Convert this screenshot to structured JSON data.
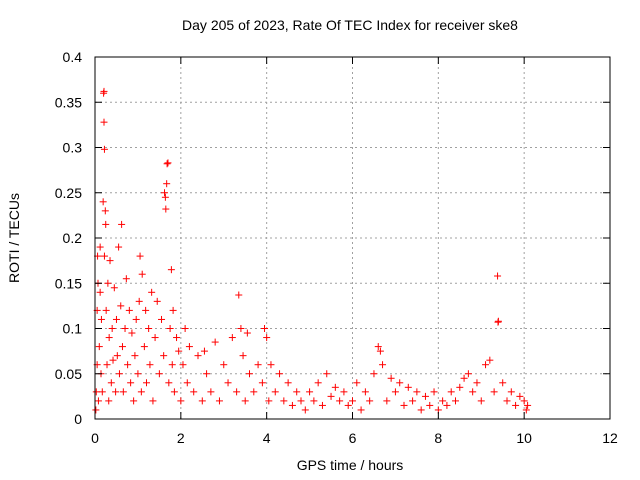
{
  "chart_data": {
    "type": "scatter",
    "title": "Day 205 of 2023, Rate Of TEC Index for receiver ske8",
    "xlabel": "GPS time / hours",
    "ylabel": "ROTI / TECUs",
    "xlim": [
      0,
      12
    ],
    "ylim": [
      0,
      0.4
    ],
    "xticks": [
      0,
      2,
      4,
      6,
      8,
      10,
      12
    ],
    "xtick_labels": [
      "0",
      "2",
      "4",
      "6",
      "8",
      "10",
      "12"
    ],
    "yticks": [
      0,
      0.05,
      0.1,
      0.15,
      0.2,
      0.25,
      0.3,
      0.35,
      0.4
    ],
    "ytick_labels": [
      "0",
      "0.05",
      "0.1",
      "0.15",
      "0.2",
      "0.25",
      "0.3",
      "0.35",
      "0.4"
    ],
    "grid": true,
    "marker": "+",
    "color": "#ff0000",
    "series": [
      {
        "name": "ROTI",
        "points": [
          [
            0.02,
            0.01
          ],
          [
            0.03,
            0.03
          ],
          [
            0.05,
            0.06
          ],
          [
            0.05,
            0.12
          ],
          [
            0.06,
            0.18
          ],
          [
            0.07,
            0.15
          ],
          [
            0.08,
            0.02
          ],
          [
            0.1,
            0.08
          ],
          [
            0.12,
            0.14
          ],
          [
            0.12,
            0.19
          ],
          [
            0.14,
            0.05
          ],
          [
            0.15,
            0.11
          ],
          [
            0.17,
            0.03
          ],
          [
            0.19,
            0.24
          ],
          [
            0.2,
            0.36
          ],
          [
            0.21,
            0.362
          ],
          [
            0.21,
            0.328
          ],
          [
            0.22,
            0.298
          ],
          [
            0.22,
            0.18
          ],
          [
            0.24,
            0.23
          ],
          [
            0.25,
            0.215
          ],
          [
            0.26,
            0.12
          ],
          [
            0.28,
            0.06
          ],
          [
            0.3,
            0.15
          ],
          [
            0.32,
            0.02
          ],
          [
            0.33,
            0.09
          ],
          [
            0.35,
            0.175
          ],
          [
            0.38,
            0.04
          ],
          [
            0.4,
            0.1
          ],
          [
            0.42,
            0.065
          ],
          [
            0.45,
            0.145
          ],
          [
            0.48,
            0.03
          ],
          [
            0.5,
            0.11
          ],
          [
            0.52,
            0.07
          ],
          [
            0.55,
            0.19
          ],
          [
            0.57,
            0.05
          ],
          [
            0.6,
            0.125
          ],
          [
            0.62,
            0.215
          ],
          [
            0.64,
            0.08
          ],
          [
            0.66,
            0.03
          ],
          [
            0.7,
            0.1
          ],
          [
            0.73,
            0.155
          ],
          [
            0.76,
            0.06
          ],
          [
            0.8,
            0.12
          ],
          [
            0.83,
            0.04
          ],
          [
            0.86,
            0.095
          ],
          [
            0.9,
            0.02
          ],
          [
            0.93,
            0.07
          ],
          [
            0.96,
            0.11
          ],
          [
            1.0,
            0.05
          ],
          [
            1.03,
            0.13
          ],
          [
            1.05,
            0.18
          ],
          [
            1.08,
            0.03
          ],
          [
            1.1,
            0.16
          ],
          [
            1.15,
            0.08
          ],
          [
            1.18,
            0.12
          ],
          [
            1.2,
            0.04
          ],
          [
            1.25,
            0.1
          ],
          [
            1.28,
            0.06
          ],
          [
            1.32,
            0.14
          ],
          [
            1.35,
            0.02
          ],
          [
            1.4,
            0.09
          ],
          [
            1.45,
            0.13
          ],
          [
            1.5,
            0.05
          ],
          [
            1.55,
            0.11
          ],
          [
            1.6,
            0.07
          ],
          [
            1.62,
            0.25
          ],
          [
            1.64,
            0.245
          ],
          [
            1.65,
            0.232
          ],
          [
            1.67,
            0.26
          ],
          [
            1.68,
            0.282
          ],
          [
            1.7,
            0.283
          ],
          [
            1.72,
            0.04
          ],
          [
            1.75,
            0.1
          ],
          [
            1.78,
            0.165
          ],
          [
            1.8,
            0.06
          ],
          [
            1.82,
            0.12
          ],
          [
            1.85,
            0.03
          ],
          [
            1.9,
            0.09
          ],
          [
            1.95,
            0.075
          ],
          [
            2.0,
            0.02
          ],
          [
            2.05,
            0.06
          ],
          [
            2.1,
            0.1
          ],
          [
            2.15,
            0.04
          ],
          [
            2.2,
            0.08
          ],
          [
            2.3,
            0.03
          ],
          [
            2.4,
            0.07
          ],
          [
            2.5,
            0.02
          ],
          [
            2.55,
            0.075
          ],
          [
            2.6,
            0.05
          ],
          [
            2.7,
            0.03
          ],
          [
            2.8,
            0.085
          ],
          [
            2.9,
            0.02
          ],
          [
            3.0,
            0.06
          ],
          [
            3.1,
            0.04
          ],
          [
            3.2,
            0.09
          ],
          [
            3.3,
            0.03
          ],
          [
            3.35,
            0.137
          ],
          [
            3.4,
            0.1
          ],
          [
            3.45,
            0.07
          ],
          [
            3.5,
            0.02
          ],
          [
            3.55,
            0.095
          ],
          [
            3.6,
            0.05
          ],
          [
            3.7,
            0.03
          ],
          [
            3.8,
            0.06
          ],
          [
            3.9,
            0.04
          ],
          [
            3.95,
            0.1
          ],
          [
            4.0,
            0.09
          ],
          [
            4.05,
            0.02
          ],
          [
            4.1,
            0.06
          ],
          [
            4.2,
            0.03
          ],
          [
            4.3,
            0.05
          ],
          [
            4.4,
            0.02
          ],
          [
            4.5,
            0.04
          ],
          [
            4.6,
            0.015
          ],
          [
            4.7,
            0.03
          ],
          [
            4.8,
            0.02
          ],
          [
            4.9,
            0.01
          ],
          [
            5.0,
            0.03
          ],
          [
            5.1,
            0.02
          ],
          [
            5.2,
            0.04
          ],
          [
            5.3,
            0.015
          ],
          [
            5.4,
            0.05
          ],
          [
            5.5,
            0.025
          ],
          [
            5.6,
            0.035
          ],
          [
            5.7,
            0.02
          ],
          [
            5.8,
            0.03
          ],
          [
            5.9,
            0.015
          ],
          [
            6.0,
            0.02
          ],
          [
            6.1,
            0.04
          ],
          [
            6.2,
            0.01
          ],
          [
            6.3,
            0.03
          ],
          [
            6.4,
            0.02
          ],
          [
            6.5,
            0.05
          ],
          [
            6.6,
            0.08
          ],
          [
            6.65,
            0.075
          ],
          [
            6.7,
            0.06
          ],
          [
            6.8,
            0.02
          ],
          [
            6.9,
            0.045
          ],
          [
            7.0,
            0.03
          ],
          [
            7.1,
            0.04
          ],
          [
            7.2,
            0.015
          ],
          [
            7.3,
            0.035
          ],
          [
            7.4,
            0.02
          ],
          [
            7.5,
            0.03
          ],
          [
            7.6,
            0.01
          ],
          [
            7.7,
            0.025
          ],
          [
            7.8,
            0.015
          ],
          [
            7.9,
            0.03
          ],
          [
            8.0,
            0.01
          ],
          [
            8.1,
            0.02
          ],
          [
            8.2,
            0.015
          ],
          [
            8.3,
            0.03
          ],
          [
            8.4,
            0.02
          ],
          [
            8.5,
            0.035
          ],
          [
            8.6,
            0.045
          ],
          [
            8.7,
            0.05
          ],
          [
            8.8,
            0.03
          ],
          [
            8.9,
            0.04
          ],
          [
            9.0,
            0.02
          ],
          [
            9.1,
            0.06
          ],
          [
            9.2,
            0.065
          ],
          [
            9.3,
            0.03
          ],
          [
            9.38,
            0.158
          ],
          [
            9.39,
            0.107
          ],
          [
            9.4,
            0.108
          ],
          [
            9.5,
            0.04
          ],
          [
            9.6,
            0.02
          ],
          [
            9.7,
            0.03
          ],
          [
            9.8,
            0.015
          ],
          [
            9.9,
            0.025
          ],
          [
            10.0,
            0.02
          ],
          [
            10.05,
            0.01
          ],
          [
            10.08,
            0.015
          ]
        ]
      }
    ]
  }
}
